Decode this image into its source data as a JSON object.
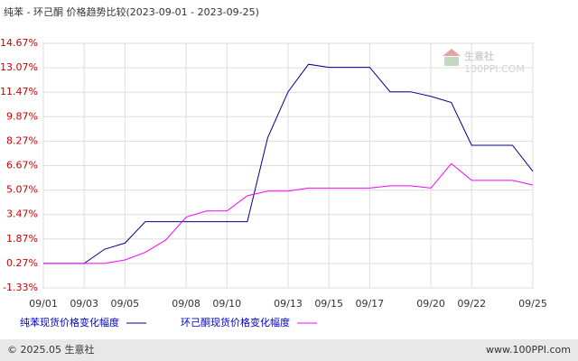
{
  "chart_data": {
    "type": "line",
    "title": "纯苯 - 环己酮 价格趋势比较(2023-09-01 - 2023-09-25)",
    "categories": [
      "09/01",
      null,
      "09/03",
      null,
      "09/05",
      null,
      null,
      "09/08",
      null,
      "09/10",
      null,
      null,
      "09/13",
      null,
      "09/15",
      null,
      "09/17",
      null,
      null,
      "09/20",
      null,
      "09/22",
      null,
      null,
      "09/25"
    ],
    "series": [
      {
        "name": "纯苯现货价格变化幅度",
        "color": "#00008b",
        "values": [
          0.27,
          0.27,
          0.27,
          1.2,
          1.6,
          3.0,
          3.0,
          3.0,
          3.0,
          3.0,
          3.0,
          8.5,
          11.5,
          13.3,
          13.1,
          13.1,
          13.1,
          11.5,
          11.5,
          11.2,
          10.8,
          8.0,
          8.0,
          8.0,
          6.3
        ]
      },
      {
        "name": "环己酮现货价格变化幅度",
        "color": "#ff00ff",
        "values": [
          0.27,
          0.27,
          0.27,
          0.27,
          0.5,
          1.0,
          1.8,
          3.3,
          3.7,
          3.7,
          4.7,
          5.0,
          5.0,
          5.2,
          5.2,
          5.2,
          5.2,
          5.35,
          5.35,
          5.2,
          6.8,
          5.7,
          5.7,
          5.7,
          5.4
        ]
      }
    ],
    "ylim": [
      -1.33,
      14.67
    ],
    "yticks": [
      {
        "value": -1.33,
        "label": "-1.33%"
      },
      {
        "value": 0.27,
        "label": "0.27%"
      },
      {
        "value": 1.87,
        "label": "1.87%"
      },
      {
        "value": 3.47,
        "label": "3.47%"
      },
      {
        "value": 5.07,
        "label": "5.07%"
      },
      {
        "value": 6.67,
        "label": "6.67%"
      },
      {
        "value": 8.27,
        "label": "8.27%"
      },
      {
        "value": 9.87,
        "label": "9.87%"
      },
      {
        "value": 11.47,
        "label": "11.47%"
      },
      {
        "value": 13.07,
        "label": "13.07%"
      },
      {
        "value": 14.67,
        "label": "14.67%"
      }
    ],
    "grid": true,
    "watermark": "生意社",
    "watermark_sub": "100PPI.COM",
    "footer_left": "© 2025.05 生意社",
    "footer_right": "www.100PPI.com"
  }
}
